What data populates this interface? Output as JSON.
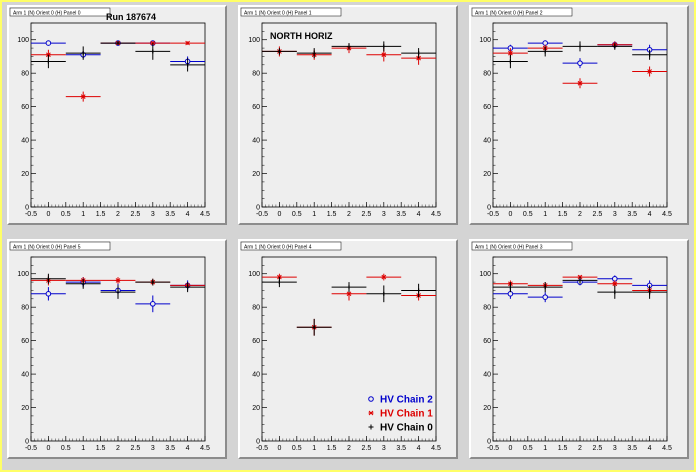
{
  "run_label": "Run 187674",
  "colors": {
    "chain2": "#0000cc",
    "chain1": "#dd0000",
    "chain0": "#000000"
  },
  "legend": [
    {
      "key": "chain2",
      "label": "HV Chain 2",
      "marker": "circle"
    },
    {
      "key": "chain1",
      "label": "HV Chain 1",
      "marker": "star"
    },
    {
      "key": "chain0",
      "label": "HV Chain 0",
      "marker": "plus"
    }
  ],
  "chart_data": [
    {
      "type": "scatter",
      "title": "Arm 1 (N) Orient 0 (H) Panel 0",
      "annotation": "Run 187674",
      "xlim": [
        -0.5,
        4.5
      ],
      "ylim": [
        0,
        110
      ],
      "xticks": [
        "-0.5",
        "0",
        "0.5",
        "1",
        "1.5",
        "2",
        "2.5",
        "3",
        "3.5",
        "4",
        "4.5"
      ],
      "yticks": [
        "0",
        "20",
        "40",
        "60",
        "80",
        "100"
      ],
      "series": [
        {
          "name": "HV Chain 2",
          "key": "chain2",
          "x": [
            0,
            1,
            2,
            3,
            4
          ],
          "y": [
            98,
            91,
            98,
            98,
            87
          ],
          "yerr": [
            1,
            2,
            1,
            1,
            3
          ]
        },
        {
          "name": "HV Chain 1",
          "key": "chain1",
          "x": [
            0,
            1,
            2,
            3,
            4
          ],
          "y": [
            91,
            66,
            98,
            98,
            98
          ],
          "yerr": [
            3,
            3,
            1,
            1,
            1
          ]
        },
        {
          "name": "HV Chain 0",
          "key": "chain0",
          "x": [
            0,
            1,
            2,
            3,
            4
          ],
          "y": [
            87,
            92,
            98,
            93,
            85
          ],
          "yerr": [
            4,
            4,
            1,
            5,
            4
          ]
        }
      ]
    },
    {
      "type": "scatter",
      "title": "Arm 1 (N) Orient 0 (H) Panel 1",
      "annotation": "NORTH HORIZ",
      "xlim": [
        -0.5,
        4.5
      ],
      "ylim": [
        0,
        110
      ],
      "xticks": [
        "-0.5",
        "0",
        "0.5",
        "1",
        "1.5",
        "2",
        "2.5",
        "3",
        "3.5",
        "4",
        "4.5"
      ],
      "yticks": [
        "0",
        "20",
        "40",
        "60",
        "80",
        "100"
      ],
      "series": [
        {
          "name": "HV Chain 2",
          "key": "chain2",
          "x": [],
          "y": [],
          "yerr": []
        },
        {
          "name": "HV Chain 1",
          "key": "chain1",
          "x": [
            0,
            1,
            2,
            3,
            4
          ],
          "y": [
            93,
            91,
            95,
            91,
            89
          ],
          "yerr": [
            3,
            3,
            3,
            4,
            4
          ]
        },
        {
          "name": "HV Chain 0",
          "key": "chain0",
          "x": [
            0,
            1,
            2,
            3,
            4
          ],
          "y": [
            93,
            92,
            96,
            96,
            92
          ],
          "yerr": [
            2,
            3,
            2,
            3,
            3
          ]
        }
      ]
    },
    {
      "type": "scatter",
      "title": "Arm 1 (N) Orient 0 (H) Panel 2",
      "annotation": "",
      "xlim": [
        -0.5,
        4.5
      ],
      "ylim": [
        0,
        110
      ],
      "xticks": [
        "-0.5",
        "0",
        "0.5",
        "1",
        "1.5",
        "2",
        "2.5",
        "3",
        "3.5",
        "4",
        "4.5"
      ],
      "yticks": [
        "0",
        "20",
        "40",
        "60",
        "80",
        "100"
      ],
      "series": [
        {
          "name": "HV Chain 2",
          "key": "chain2",
          "x": [
            0,
            1,
            2,
            3,
            4
          ],
          "y": [
            95,
            98,
            86,
            97,
            94
          ],
          "yerr": [
            2,
            1,
            3,
            2,
            3
          ]
        },
        {
          "name": "HV Chain 1",
          "key": "chain1",
          "x": [
            0,
            1,
            2,
            3,
            4
          ],
          "y": [
            92,
            95,
            74,
            97,
            81
          ],
          "yerr": [
            3,
            2,
            3,
            2,
            3
          ]
        },
        {
          "name": "HV Chain 0",
          "key": "chain0",
          "x": [
            0,
            1,
            2,
            3,
            4
          ],
          "y": [
            87,
            93,
            96,
            96,
            91
          ],
          "yerr": [
            4,
            3,
            3,
            2,
            3
          ]
        }
      ]
    },
    {
      "type": "scatter",
      "title": "Arm 1 (N) Orient 0 (H) Panel 5",
      "annotation": "",
      "xlim": [
        -0.5,
        4.5
      ],
      "ylim": [
        0,
        110
      ],
      "xticks": [
        "-0.5",
        "0",
        "0.5",
        "1",
        "1.5",
        "2",
        "2.5",
        "3",
        "3.5",
        "4",
        "4.5"
      ],
      "yticks": [
        "0",
        "20",
        "40",
        "60",
        "80",
        "100"
      ],
      "series": [
        {
          "name": "HV Chain 2",
          "key": "chain2",
          "x": [
            0,
            1,
            2,
            3,
            4
          ],
          "y": [
            88,
            95,
            90,
            82,
            93
          ],
          "yerr": [
            4,
            3,
            4,
            5,
            3
          ]
        },
        {
          "name": "HV Chain 1",
          "key": "chain1",
          "x": [
            0,
            1,
            2,
            3,
            4
          ],
          "y": [
            96,
            96,
            96,
            95,
            93
          ],
          "yerr": [
            3,
            2,
            2,
            2,
            2
          ]
        },
        {
          "name": "HV Chain 0",
          "key": "chain0",
          "x": [
            0,
            1,
            2,
            3,
            4
          ],
          "y": [
            97,
            94,
            89,
            95,
            92
          ],
          "yerr": [
            3,
            3,
            4,
            2,
            3
          ]
        }
      ]
    },
    {
      "type": "scatter",
      "title": "Arm 1 (N) Orient 0 (H) Panel 4",
      "annotation": "",
      "xlim": [
        -0.5,
        4.5
      ],
      "ylim": [
        0,
        110
      ],
      "xticks": [
        "-0.5",
        "0",
        "0.5",
        "1",
        "1.5",
        "2",
        "2.5",
        "3",
        "3.5",
        "4",
        "4.5"
      ],
      "yticks": [
        "0",
        "20",
        "40",
        "60",
        "80",
        "100"
      ],
      "legend": true,
      "series": [
        {
          "name": "HV Chain 2",
          "key": "chain2",
          "x": [],
          "y": [],
          "yerr": []
        },
        {
          "name": "HV Chain 1",
          "key": "chain1",
          "x": [
            0,
            1,
            2,
            3,
            4
          ],
          "y": [
            98,
            68,
            88,
            98,
            87
          ],
          "yerr": [
            2,
            5,
            4,
            2,
            3
          ]
        },
        {
          "name": "HV Chain 0",
          "key": "chain0",
          "x": [
            0,
            1,
            2,
            3,
            4
          ],
          "y": [
            95,
            68,
            92,
            88,
            90
          ],
          "yerr": [
            3,
            5,
            3,
            5,
            4
          ]
        }
      ]
    },
    {
      "type": "scatter",
      "title": "Arm 1 (N) Orient 0 (H) Panel 3",
      "annotation": "",
      "xlim": [
        -0.5,
        4.5
      ],
      "ylim": [
        0,
        110
      ],
      "xticks": [
        "-0.5",
        "0",
        "0.5",
        "1",
        "1.5",
        "2",
        "2.5",
        "3",
        "3.5",
        "4",
        "4.5"
      ],
      "yticks": [
        "0",
        "20",
        "40",
        "60",
        "80",
        "100"
      ],
      "series": [
        {
          "name": "HV Chain 2",
          "key": "chain2",
          "x": [
            0,
            1,
            2,
            3,
            4
          ],
          "y": [
            88,
            86,
            95,
            97,
            93
          ],
          "yerr": [
            3,
            3,
            2,
            2,
            3
          ]
        },
        {
          "name": "HV Chain 1",
          "key": "chain1",
          "x": [
            0,
            1,
            2,
            3,
            4
          ],
          "y": [
            94,
            93,
            98,
            94,
            90
          ],
          "yerr": [
            2,
            2,
            1,
            2,
            3
          ]
        },
        {
          "name": "HV Chain 0",
          "key": "chain0",
          "x": [
            0,
            1,
            2,
            3,
            4
          ],
          "y": [
            92,
            92,
            96,
            89,
            89
          ],
          "yerr": [
            3,
            3,
            2,
            4,
            4
          ]
        }
      ]
    }
  ]
}
